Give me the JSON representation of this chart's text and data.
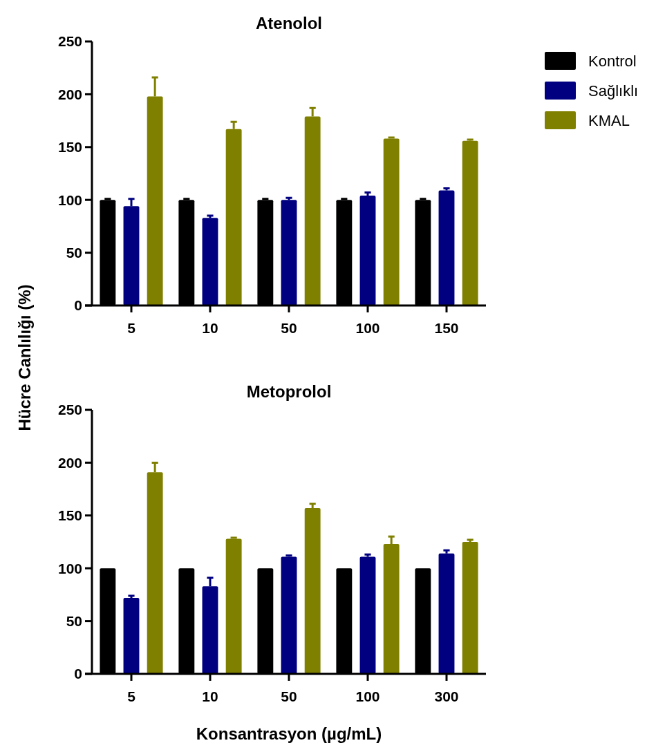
{
  "chart_data": [
    {
      "type": "bar",
      "title": "Atenolol",
      "ylabel": "Hücre Canlılığı (%)",
      "categories": [
        "5",
        "10",
        "50",
        "100",
        "150"
      ],
      "ylim": [
        0,
        250
      ],
      "yticks": [
        0,
        50,
        100,
        150,
        200,
        250
      ],
      "legend": "right",
      "grid": false,
      "series": [
        {
          "name": "Kontrol",
          "color": "#000000",
          "values": [
            100,
            100,
            100,
            100,
            100
          ],
          "errors": [
            1,
            1,
            1,
            1,
            1
          ]
        },
        {
          "name": "Sağlıklı",
          "color": "#000080",
          "values": [
            94,
            83,
            100,
            104,
            109
          ],
          "errors": [
            7,
            2,
            2,
            3,
            2
          ]
        },
        {
          "name": "KMAL",
          "color": "#808000",
          "values": [
            198,
            167,
            179,
            158,
            156
          ],
          "errors": [
            18,
            7,
            8,
            1,
            1
          ]
        }
      ]
    },
    {
      "type": "bar",
      "title": "Metoprolol",
      "xlabel": "Konsantrasyon (µg/mL)",
      "categories": [
        "5",
        "10",
        "50",
        "100",
        "300"
      ],
      "ylim": [
        0,
        250
      ],
      "yticks": [
        0,
        50,
        100,
        150,
        200,
        250
      ],
      "grid": false,
      "series": [
        {
          "color": "#000000",
          "values": [
            100,
            100,
            100,
            100,
            100
          ]
        },
        {
          "color": "#000080",
          "values": [
            72,
            83,
            111,
            111,
            114
          ],
          "errors": [
            2,
            8,
            1,
            2,
            3
          ]
        },
        {
          "color": "#808000",
          "values": [
            191,
            128,
            157,
            123,
            125
          ],
          "errors": [
            9,
            1,
            4,
            7,
            2
          ]
        }
      ]
    }
  ]
}
